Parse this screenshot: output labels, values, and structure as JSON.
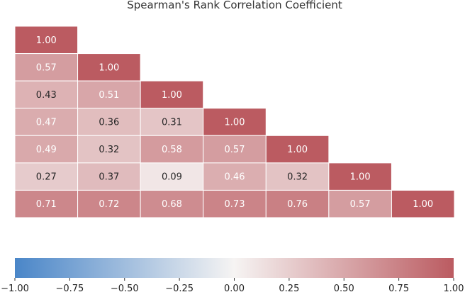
{
  "chart_data": {
    "type": "heatmap",
    "title": "Spearman's Rank Correlation Coefficient",
    "matrix": [
      [
        1.0
      ],
      [
        0.57,
        1.0
      ],
      [
        0.43,
        0.51,
        1.0
      ],
      [
        0.47,
        0.36,
        0.31,
        1.0
      ],
      [
        0.49,
        0.32,
        0.58,
        0.57,
        1.0
      ],
      [
        0.27,
        0.37,
        0.09,
        0.46,
        0.32,
        1.0
      ],
      [
        0.71,
        0.72,
        0.68,
        0.73,
        0.76,
        0.57,
        1.0
      ]
    ],
    "value_format": "0.00",
    "mask": "upper-triangle",
    "colorbar": {
      "orientation": "horizontal",
      "range": [
        -1.0,
        1.0
      ],
      "ticks": [
        -1.0,
        -0.75,
        -0.5,
        -0.25,
        0.0,
        0.25,
        0.5,
        0.75,
        1.0
      ],
      "tick_labels": [
        "−1.00",
        "−0.75",
        "−0.50",
        "−0.25",
        "0.00",
        "0.25",
        "0.50",
        "0.75",
        "1.00"
      ],
      "colormap": {
        "low": "#4a86c8",
        "mid": "#f6f4f3",
        "high": "#bb5b61"
      }
    }
  }
}
